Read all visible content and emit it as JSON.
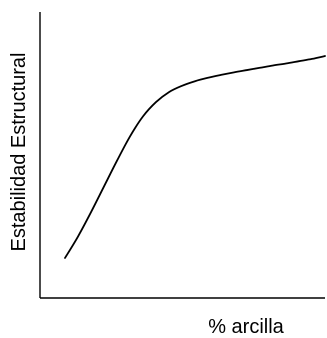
{
  "chart_data": {
    "type": "line",
    "title": "",
    "xlabel": "% arcilla",
    "ylabel": "Estabilidad Estructural",
    "x_ticks_shown": false,
    "y_ticks_shown": false,
    "grid": false,
    "legend": "none",
    "xlim": [
      0,
      100
    ],
    "ylim": [
      0,
      100
    ],
    "series": [
      {
        "x": [
          0,
          5,
          10,
          15,
          20,
          25,
          30,
          35,
          40,
          45,
          50,
          55,
          60,
          65,
          70,
          75,
          80,
          85,
          90,
          95,
          100
        ],
        "values": [
          14,
          21.5,
          30,
          39,
          48,
          56.5,
          63.5,
          68.5,
          72,
          74.2,
          75.8,
          77,
          78,
          78.9,
          79.7,
          80.5,
          81.3,
          82,
          82.8,
          83.6,
          84.6
        ]
      }
    ]
  },
  "colors": {
    "line": "#000000",
    "axes": "#000000",
    "background": "#ffffff"
  }
}
